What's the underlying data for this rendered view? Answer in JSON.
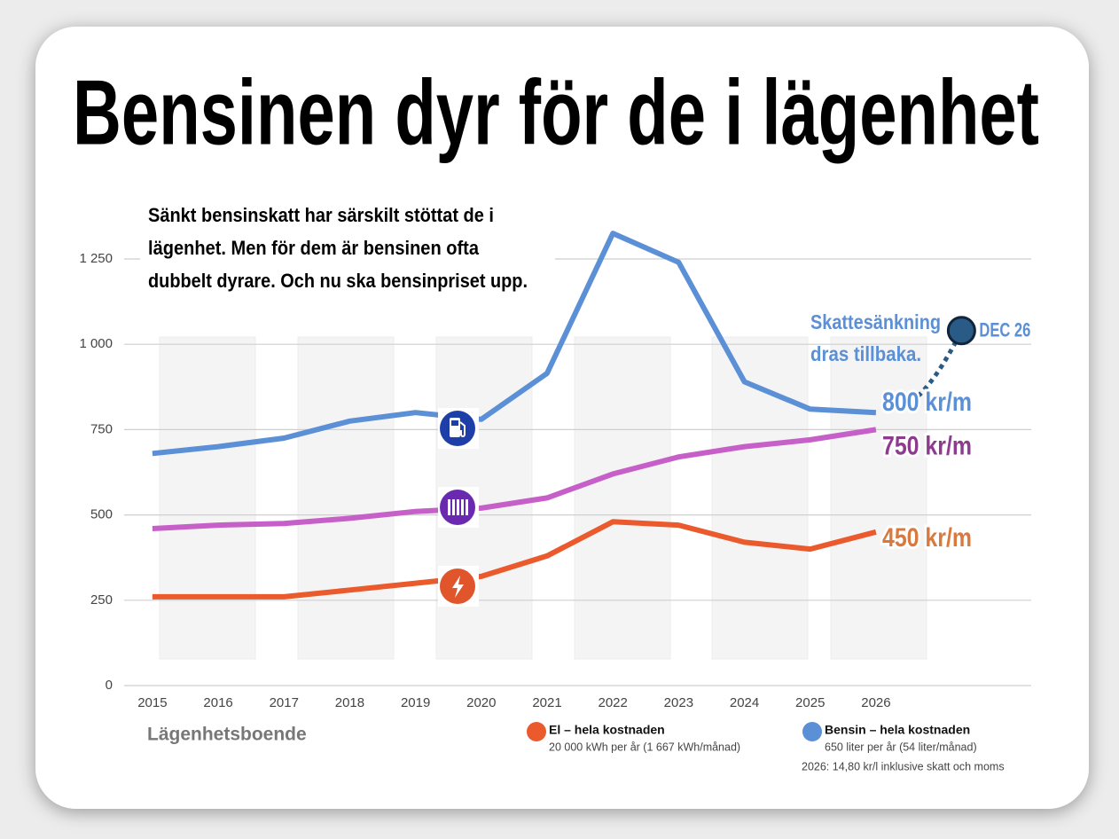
{
  "chart_data": {
    "type": "line",
    "title": "Bensinen dyr för de i lägenhet",
    "subtitle_lines": [
      "Sänkt bensinskatt har särskilt stöttat de i",
      "lägenhet. Men för dem är bensinen ofta",
      "dubbelt dyrare. Och nu ska bensinpriset upp."
    ],
    "x": [
      2015,
      2016,
      2017,
      2018,
      2019,
      2020,
      2021,
      2022,
      2023,
      2024,
      2025,
      2026
    ],
    "xticks": [
      2015,
      2016,
      2017,
      2018,
      2019,
      2020,
      2021,
      2022,
      2023,
      2024,
      2025,
      2026
    ],
    "xlim": [
      2014.57,
      2028.36
    ],
    "ylim": [
      0,
      1330
    ],
    "yticks": [
      0,
      250,
      500,
      750,
      {
        "value": 1000,
        "label": "1 000"
      },
      {
        "value": 1250,
        "label": "1 250"
      }
    ],
    "grid": true,
    "series": [
      {
        "name": "Bensin – hela kostnaden",
        "detail": "650 liter per år (54 liter/månad)",
        "color": "#5b8fd6",
        "label_color": "#5b8fd6",
        "end_label": "800 kr/m",
        "values": [
          680,
          700,
          725,
          775,
          800,
          780,
          915,
          1325,
          1240,
          890,
          810,
          800
        ]
      },
      {
        "color": "#c660c8",
        "label_color": "#8e3a8e",
        "end_label": "750 kr/m",
        "values": [
          460,
          470,
          475,
          490,
          510,
          520,
          550,
          620,
          670,
          700,
          720,
          750
        ]
      },
      {
        "name": "El – hela kostnaden",
        "detail": "20 000 kWh per år (1 667 kWh/månad)",
        "color": "#ea5a2c",
        "label_color": "#d9793e",
        "end_label": "450 kr/m",
        "values": [
          260,
          260,
          260,
          280,
          300,
          320,
          380,
          480,
          470,
          420,
          400,
          450
        ]
      }
    ],
    "projection": {
      "x": 2027.3,
      "value": 1040,
      "label": "DEC 26",
      "color": "#2a5b86",
      "note": "Skattesänkning dras tillbaka.",
      "note_lines": [
        "Skattesänkning",
        "dras tillbaka."
      ]
    },
    "footer_label": "Lägenhetsboende",
    "footnote": "2026: 14,80 kr/l inklusive skatt och moms"
  }
}
